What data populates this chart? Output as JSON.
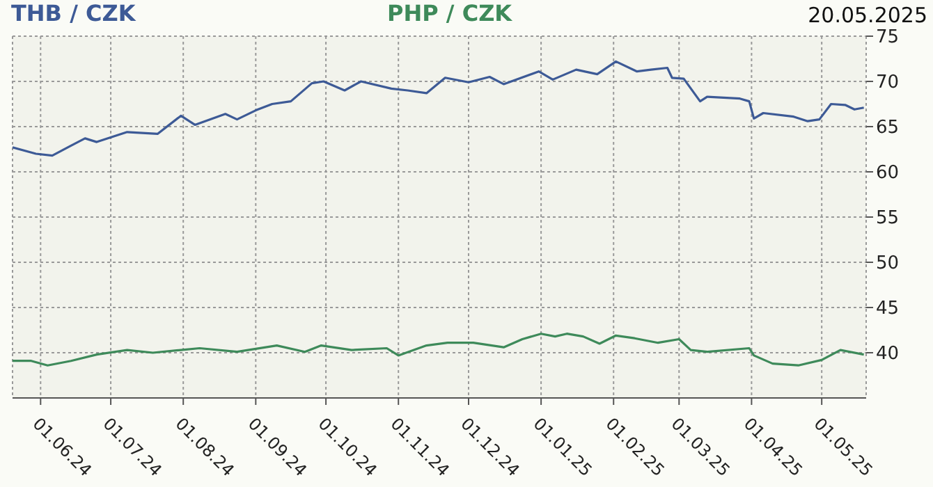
{
  "chart_data": {
    "type": "line",
    "annotations": [
      "20.05.2025"
    ],
    "legend": "top",
    "grid": true,
    "marker": "none",
    "line_style": "solid",
    "xlim": [
      "2024-05-20",
      "2025-05-20"
    ],
    "ylim": [
      35,
      75
    ],
    "yticks": [
      40,
      45,
      50,
      55,
      60,
      65,
      70,
      75
    ],
    "xticks": [
      {
        "value": "2024-06-01",
        "label": "01.06.24"
      },
      {
        "value": "2024-07-01",
        "label": "01.07.24"
      },
      {
        "value": "2024-08-01",
        "label": "01.08.24"
      },
      {
        "value": "2024-09-01",
        "label": "01.09.24"
      },
      {
        "value": "2024-10-01",
        "label": "01.10.24"
      },
      {
        "value": "2024-11-01",
        "label": "01.11.24"
      },
      {
        "value": "2024-12-01",
        "label": "01.12.24"
      },
      {
        "value": "2025-01-01",
        "label": "01.01.25"
      },
      {
        "value": "2025-02-01",
        "label": "01.02.25"
      },
      {
        "value": "2025-03-01",
        "label": "01.03.25"
      },
      {
        "value": "2025-04-01",
        "label": "01.04.25"
      },
      {
        "value": "2025-05-01",
        "label": "01.05.25"
      }
    ],
    "series": [
      {
        "name": "THB / CZK",
        "color": "#3d5a96",
        "x": [
          "2024-05-20",
          "2024-05-30",
          "2024-06-06",
          "2024-06-14",
          "2024-06-20",
          "2024-06-25",
          "2024-07-08",
          "2024-07-21",
          "2024-07-31",
          "2024-08-06",
          "2024-08-19",
          "2024-08-24",
          "2024-09-01",
          "2024-09-08",
          "2024-09-16",
          "2024-09-25",
          "2024-09-30",
          "2024-10-09",
          "2024-10-16",
          "2024-10-29",
          "2024-11-05",
          "2024-11-13",
          "2024-11-21",
          "2024-12-01",
          "2024-12-10",
          "2024-12-16",
          "2024-12-31",
          "2025-01-06",
          "2025-01-16",
          "2025-01-25",
          "2025-02-02",
          "2025-02-11",
          "2025-02-17",
          "2025-02-24",
          "2025-02-26",
          "2025-03-03",
          "2025-03-10",
          "2025-03-13",
          "2025-03-27",
          "2025-03-31",
          "2025-04-02",
          "2025-04-06",
          "2025-04-19",
          "2025-04-25",
          "2025-04-30",
          "2025-05-05",
          "2025-05-11",
          "2025-05-15",
          "2025-05-19"
        ],
        "values": [
          62.7,
          62.0,
          61.8,
          62.9,
          63.7,
          63.3,
          64.4,
          64.2,
          66.2,
          65.2,
          66.4,
          65.8,
          66.8,
          67.5,
          67.8,
          69.8,
          70.0,
          69.0,
          70.0,
          69.2,
          69.0,
          68.7,
          70.4,
          69.9,
          70.5,
          69.7,
          71.1,
          70.2,
          71.3,
          70.8,
          72.2,
          71.1,
          71.3,
          71.5,
          70.4,
          70.3,
          67.8,
          68.3,
          68.1,
          67.8,
          65.9,
          66.5,
          66.1,
          65.6,
          65.8,
          67.5,
          67.4,
          66.9,
          67.1
        ]
      },
      {
        "name": "PHP / CZK",
        "color": "#3e8a5a",
        "x": [
          "2024-05-20",
          "2024-05-28",
          "2024-06-04",
          "2024-06-14",
          "2024-06-25",
          "2024-07-08",
          "2024-07-19",
          "2024-07-31",
          "2024-08-08",
          "2024-08-24",
          "2024-09-10",
          "2024-09-22",
          "2024-09-29",
          "2024-10-12",
          "2024-10-27",
          "2024-11-01",
          "2024-11-13",
          "2024-11-22",
          "2024-12-03",
          "2024-12-16",
          "2024-12-24",
          "2025-01-01",
          "2025-01-07",
          "2025-01-12",
          "2025-01-19",
          "2025-01-26",
          "2025-02-02",
          "2025-02-10",
          "2025-02-20",
          "2025-03-01",
          "2025-03-06",
          "2025-03-13",
          "2025-03-31",
          "2025-04-02",
          "2025-04-10",
          "2025-04-21",
          "2025-05-01",
          "2025-05-09",
          "2025-05-19"
        ],
        "values": [
          39.1,
          39.1,
          38.6,
          39.1,
          39.8,
          40.3,
          40.0,
          40.3,
          40.5,
          40.1,
          40.8,
          40.1,
          40.8,
          40.3,
          40.5,
          39.7,
          40.8,
          41.1,
          41.1,
          40.6,
          41.5,
          42.1,
          41.8,
          42.1,
          41.8,
          41.0,
          41.9,
          41.6,
          41.1,
          41.5,
          40.3,
          40.1,
          40.5,
          39.7,
          38.8,
          38.6,
          39.2,
          40.3,
          39.8
        ]
      }
    ]
  }
}
